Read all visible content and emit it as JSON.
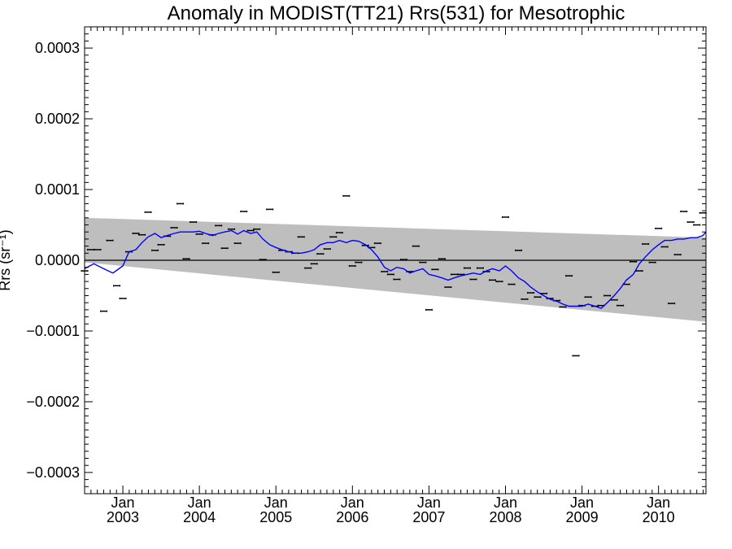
{
  "chart_data": {
    "type": "line",
    "title": "Anomaly in MODIST(TT21) Rrs(531) for Mesotrophic",
    "ylabel": "Rrs (sr⁻¹)",
    "xlabel": "",
    "xlim": [
      2002.5,
      2010.62
    ],
    "ylim": [
      -0.00033,
      0.00033
    ],
    "grid": false,
    "y_ticks": [
      {
        "value": 0.0003,
        "label": "0.0003"
      },
      {
        "value": 0.0002,
        "label": "0.0002"
      },
      {
        "value": 0.0001,
        "label": "0.0001"
      },
      {
        "value": 0.0,
        "label": "0.0000"
      },
      {
        "value": -0.0001,
        "label": "−0.0001"
      },
      {
        "value": -0.0002,
        "label": "−0.0002"
      },
      {
        "value": -0.0003,
        "label": "−0.0003"
      }
    ],
    "x_ticks": [
      {
        "value": 2003.0,
        "month": "Jan",
        "year": "2003"
      },
      {
        "value": 2004.0,
        "month": "Jan",
        "year": "2004"
      },
      {
        "value": 2005.0,
        "month": "Jan",
        "year": "2005"
      },
      {
        "value": 2006.0,
        "month": "Jan",
        "year": "2006"
      },
      {
        "value": 2007.0,
        "month": "Jan",
        "year": "2007"
      },
      {
        "value": 2008.0,
        "month": "Jan",
        "year": "2008"
      },
      {
        "value": 2009.0,
        "month": "Jan",
        "year": "2009"
      },
      {
        "value": 2010.0,
        "month": "Jan",
        "year": "2010"
      }
    ],
    "uncertainty_band": {
      "color": "#bebebe",
      "x_start": 2002.5,
      "x_end": 2010.62,
      "upper_start": 6e-05,
      "upper_end": 3.2e-05,
      "lower_start": -3e-06,
      "lower_end": -8.7e-05
    },
    "zero_line": {
      "value": 0.0,
      "color": "#000000"
    },
    "running_mean": {
      "color": "#0000ff",
      "x": [
        2002.5,
        2002.62,
        2002.75,
        2002.87,
        2003.0,
        2003.08,
        2003.17,
        2003.25,
        2003.33,
        2003.42,
        2003.5,
        2003.58,
        2003.67,
        2003.75,
        2003.83,
        2003.92,
        2004.0,
        2004.08,
        2004.17,
        2004.25,
        2004.33,
        2004.42,
        2004.5,
        2004.58,
        2004.67,
        2004.75,
        2004.83,
        2004.92,
        2005.0,
        2005.08,
        2005.17,
        2005.25,
        2005.33,
        2005.42,
        2005.5,
        2005.58,
        2005.67,
        2005.75,
        2005.83,
        2005.92,
        2006.0,
        2006.08,
        2006.17,
        2006.25,
        2006.33,
        2006.42,
        2006.5,
        2006.58,
        2006.67,
        2006.75,
        2006.83,
        2006.92,
        2007.0,
        2007.08,
        2007.17,
        2007.25,
        2007.33,
        2007.42,
        2007.5,
        2007.58,
        2007.67,
        2007.75,
        2007.83,
        2007.92,
        2008.0,
        2008.08,
        2008.17,
        2008.25,
        2008.33,
        2008.42,
        2008.5,
        2008.58,
        2008.67,
        2008.75,
        2008.83,
        2008.92,
        2009.0,
        2009.08,
        2009.17,
        2009.25,
        2009.33,
        2009.42,
        2009.5,
        2009.58,
        2009.67,
        2009.75,
        2009.83,
        2009.92,
        2010.0,
        2010.08,
        2010.17,
        2010.25,
        2010.33,
        2010.42,
        2010.5,
        2010.58,
        2010.62
      ],
      "y": [
        -1.2e-05,
        -5e-06,
        -1.2e-05,
        -1.8e-05,
        -8e-06,
        1.2e-05,
        1.5e-05,
        2.5e-05,
        3.3e-05,
        3.8e-05,
        3.2e-05,
        3.5e-05,
        3.8e-05,
        4e-05,
        4e-05,
        4e-05,
        4.1e-05,
        3.8e-05,
        3.5e-05,
        3.8e-05,
        4e-05,
        4.2e-05,
        3.7e-05,
        4.2e-05,
        3.8e-05,
        4e-05,
        3e-05,
        2.2e-05,
        1.8e-05,
        1.5e-05,
        1.2e-05,
        1e-05,
        1e-05,
        1.2e-05,
        1.5e-05,
        2.2e-05,
        2.5e-05,
        2.5e-05,
        2.8e-05,
        2.5e-05,
        2.8e-05,
        2.7e-05,
        2.2e-05,
        1.5e-05,
        5e-06,
        -1e-05,
        -1.5e-05,
        -1e-05,
        -1.2e-05,
        -1.8e-05,
        -1.5e-05,
        -1.2e-05,
        -2e-05,
        -2.2e-05,
        -2.5e-05,
        -2.8e-05,
        -2.5e-05,
        -2.2e-05,
        -2e-05,
        -1.8e-05,
        -2e-05,
        -1.5e-05,
        -1.2e-05,
        -1.5e-05,
        -8e-06,
        -1.5e-05,
        -2.5e-05,
        -3e-05,
        -3.8e-05,
        -4.5e-05,
        -5e-05,
        -5.5e-05,
        -5.8e-05,
        -6.2e-05,
        -6.5e-05,
        -6.5e-05,
        -6.5e-05,
        -6.2e-05,
        -6.5e-05,
        -6.8e-05,
        -6e-05,
        -5e-05,
        -4e-05,
        -2.8e-05,
        -2e-05,
        -5e-06,
        5e-06,
        1.5e-05,
        2.2e-05,
        2.8e-05,
        2.8e-05,
        3e-05,
        3e-05,
        3.2e-05,
        3.2e-05,
        3.5e-05,
        4e-05
      ]
    },
    "monthly_points": {
      "color": "#000000",
      "error_bar": 1.2e-06,
      "x": [
        2002.5,
        2002.58,
        2002.67,
        2002.75,
        2002.83,
        2002.92,
        2003.0,
        2003.08,
        2003.17,
        2003.25,
        2003.33,
        2003.42,
        2003.5,
        2003.58,
        2003.67,
        2003.75,
        2003.83,
        2003.92,
        2004.0,
        2004.08,
        2004.17,
        2004.25,
        2004.33,
        2004.42,
        2004.5,
        2004.58,
        2004.67,
        2004.75,
        2004.83,
        2004.92,
        2005.0,
        2005.08,
        2005.17,
        2005.25,
        2005.33,
        2005.42,
        2005.5,
        2005.58,
        2005.67,
        2005.75,
        2005.83,
        2005.92,
        2006.0,
        2006.08,
        2006.17,
        2006.25,
        2006.33,
        2006.42,
        2006.5,
        2006.58,
        2006.67,
        2006.75,
        2006.83,
        2006.92,
        2007.0,
        2007.08,
        2007.17,
        2007.25,
        2007.33,
        2007.42,
        2007.5,
        2007.58,
        2007.67,
        2007.75,
        2007.83,
        2007.92,
        2008.0,
        2008.08,
        2008.17,
        2008.25,
        2008.33,
        2008.42,
        2008.5,
        2008.58,
        2008.67,
        2008.75,
        2008.83,
        2008.92,
        2009.0,
        2009.08,
        2009.17,
        2009.25,
        2009.33,
        2009.42,
        2009.5,
        2009.58,
        2009.67,
        2009.75,
        2009.83,
        2009.92,
        2010.0,
        2010.08,
        2010.17,
        2010.25,
        2010.33,
        2010.42,
        2010.5,
        2010.58
      ],
      "y": [
        -1.5e-05,
        1.5e-05,
        1.5e-05,
        -7.2e-05,
        2.8e-05,
        -3.6e-05,
        -5.4e-05,
        1.2e-05,
        3.8e-05,
        3.6e-05,
        6.8e-05,
        1.4e-05,
        2.2e-05,
        3.4e-05,
        4.6e-05,
        8e-05,
        2e-06,
        5.4e-05,
        3.7e-05,
        2.4e-05,
        3.6e-05,
        4.9e-05,
        1.7e-05,
        4.4e-05,
        2.4e-05,
        6.9e-05,
        4.2e-05,
        4.4e-05,
        1e-06,
        7.2e-05,
        -1.7e-05,
        1.4e-05,
        1.2e-05,
        1e-05,
        3.3e-05,
        -1.1e-05,
        -5e-06,
        9e-06,
        1.6e-05,
        3.3e-05,
        3.9e-05,
        9.1e-05,
        -8e-06,
        -3e-06,
        2.1e-05,
        1.8e-05,
        2.4e-05,
        -1.6e-05,
        -2e-05,
        -2.7e-05,
        1e-06,
        -1.6e-05,
        2e-05,
        -3e-06,
        -7e-05,
        -1.3e-05,
        2e-06,
        -3.8e-05,
        -2e-05,
        -2e-05,
        -1.1e-05,
        -2.7e-05,
        -1.1e-05,
        -1.6e-05,
        -2.8e-05,
        -3e-05,
        6.1e-05,
        -3.4e-05,
        1.4e-05,
        -5.5e-05,
        -4.6e-05,
        -5.2e-05,
        -4.7e-05,
        -5.4e-05,
        -5.7e-05,
        -6.6e-05,
        -2.2e-05,
        -0.000135,
        -6.4e-05,
        -5.2e-05,
        -6.5e-05,
        -6.4e-05,
        -5e-05,
        -5.6e-05,
        -6.4e-05,
        -3.4e-05,
        -2e-06,
        -1.5e-05,
        2.3e-05,
        -3e-06,
        4.5e-05,
        1.9e-05,
        -6.1e-05,
        8e-06,
        6.9e-05,
        5.4e-05,
        5e-05,
        6.7e-05
      ]
    }
  }
}
